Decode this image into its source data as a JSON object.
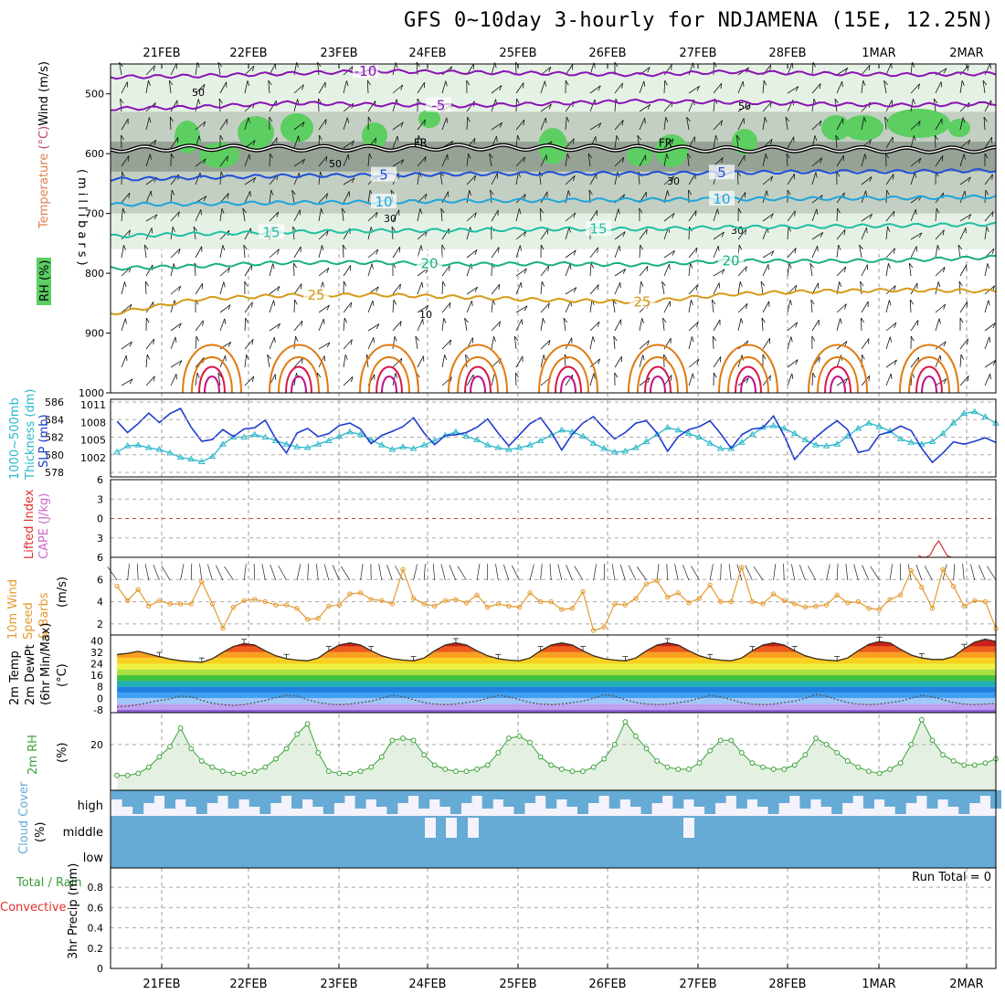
{
  "title": "GFS 0~10day 3-hourly for NDJAMENA (15E, 12.25N)",
  "dates": [
    "21FEB",
    "22FEB",
    "23FEB",
    "24FEB",
    "25FEB",
    "26FEB",
    "27FEB",
    "28FEB",
    "1MAR",
    "2MAR"
  ],
  "colors": {
    "rh_dark": "#8f9a8e",
    "rh_mid": "#c3cfc2",
    "rh_light": "#e6f1e5",
    "rh_green": "#5cce62",
    "t_purple": "#8a14b4",
    "t_blue": "#1f4fd8",
    "t_cyan": "#1fa4dc",
    "t_teal": "#1fbfa4",
    "t_green": "#18b080",
    "t_orange": "#d49a18",
    "t_dark_orange": "#e07a10",
    "t_red": "#d81848",
    "slp": "#1d3ccf",
    "thickness": "#2ab7c9",
    "wind10": "#e49a30",
    "rh2m": "#3ba23b",
    "cloud": "#66aad6"
  },
  "chart_data": [
    {
      "panel": "upper_air",
      "type": "heatmap",
      "ylabel_parts": [
        "RH (%)",
        "Temperature (°C)",
        "Wind (m/s)"
      ],
      "ylabel_unit": "(millibars)",
      "y_ticks": [
        500,
        600,
        700,
        800,
        900,
        1000
      ],
      "ylim": [
        450,
        1000
      ],
      "freezing_label": "FR",
      "rh_contour_labels": [
        "50",
        "50",
        "50",
        "30",
        "30",
        "30",
        "10"
      ],
      "isotherms": [
        {
          "label": "-10",
          "p": [
            472,
            470,
            466,
            462,
            464,
            466,
            468,
            463,
            466,
            468,
            466
          ]
        },
        {
          "label": "-5",
          "p": [
            525,
            522,
            515,
            518,
            520,
            516,
            512,
            514,
            517,
            519,
            516
          ]
        },
        {
          "label": "5",
          "p": [
            643,
            640,
            637,
            636,
            634,
            633,
            633,
            632,
            630,
            630,
            628
          ]
        },
        {
          "label": "10",
          "p": [
            685,
            684,
            682,
            681,
            679,
            678,
            677,
            676,
            675,
            674,
            672
          ]
        },
        {
          "label": "15",
          "p": [
            738,
            734,
            731,
            729,
            728,
            726,
            726,
            723,
            722,
            720,
            718
          ]
        },
        {
          "label": "20",
          "p": [
            792,
            788,
            782,
            782,
            785,
            784,
            786,
            779,
            780,
            778,
            773
          ]
        },
        {
          "label": "25",
          "p": [
            868,
            843,
            837,
            836,
            840,
            845,
            848,
            835,
            830,
            828,
            830
          ]
        }
      ],
      "freezing_level_p": [
        593,
        590,
        591,
        591,
        589,
        590,
        591,
        593,
        592,
        594,
        593
      ]
    },
    {
      "panel": "slp_thickness",
      "type": "line",
      "ylabel_left": "1000~500mb Thickness (dm)",
      "ylabel_right": "SLP (mb)",
      "y_ticks_left": [
        578,
        580,
        582,
        584,
        586
      ],
      "y_ticks_right": [
        1002,
        1005,
        1008,
        1011
      ],
      "series": [
        {
          "name": "SLP (mb)",
          "values": [
            1008.2,
            1006.3,
            1007.8,
            1009.6,
            1008.0,
            1009.5,
            1010.4,
            1007.2,
            1004.8,
            1005.1,
            1006.8,
            1005.6,
            1006.9,
            1007.1,
            1008.4,
            1005.2,
            1002.8,
            1006.2,
            1007.0,
            1005.6,
            1006.1,
            1007.5,
            1007.9,
            1006.9,
            1004.4,
            1005.8,
            1006.5,
            1007.3,
            1008.8,
            1006.2,
            1004.2,
            1005.8,
            1005.9,
            1006.3,
            1007.2,
            1008.6,
            1006.2,
            1004.0,
            1005.9,
            1007.8,
            1008.8,
            1006.4,
            1003.3,
            1006.0,
            1007.9,
            1009.0,
            1007.0,
            1005.2,
            1006.3,
            1007.9,
            1008.3,
            1006.2,
            1003.1,
            1005.6,
            1006.8,
            1007.3,
            1008.3,
            1006.1,
            1003.6,
            1005.9,
            1006.9,
            1007.1,
            1009.1,
            1005.8,
            1001.7,
            1003.8,
            1005.5,
            1007.0,
            1008.3,
            1006.8,
            1002.9,
            1003.3,
            1005.9,
            1006.4,
            1007.4,
            1006.6,
            1003.6,
            1001.2,
            1002.8,
            1004.7,
            1004.3,
            1004.8,
            1005.4,
            1004.6
          ]
        },
        {
          "name": "1000~500mb Thickness (dm)",
          "values": [
            580.3,
            581.0,
            581.1,
            580.8,
            580.6,
            580.2,
            579.7,
            579.5,
            579.2,
            579.8,
            581.2,
            582.0,
            582.0,
            582.3,
            582.0,
            581.6,
            581.2,
            580.9,
            580.8,
            581.2,
            581.6,
            582.1,
            582.6,
            582.3,
            581.7,
            581.1,
            580.6,
            580.9,
            580.7,
            581.1,
            581.6,
            582.2,
            582.6,
            582.1,
            581.7,
            581.1,
            580.8,
            580.6,
            580.8,
            581.1,
            581.6,
            582.2,
            582.8,
            582.6,
            582.1,
            581.3,
            580.7,
            580.3,
            580.4,
            580.8,
            581.5,
            582.3,
            583.1,
            582.8,
            582.4,
            582.0,
            581.3,
            580.7,
            580.7,
            581.4,
            582.3,
            583.1,
            583.3,
            583.0,
            582.4,
            581.7,
            581.1,
            581.0,
            581.2,
            582.1,
            583.0,
            583.6,
            583.2,
            582.7,
            581.8,
            581.4,
            581.2,
            581.5,
            582.4,
            583.6,
            584.7,
            584.9,
            584.3,
            583.6
          ]
        }
      ]
    },
    {
      "panel": "stability",
      "type": "line",
      "ylabel_left": "Lifted Index",
      "ylabel_right": "CAPE (J/kg)",
      "y_ticks": [
        -6,
        -3,
        0,
        3,
        6
      ],
      "tick_labels": [
        "6",
        "3",
        "0",
        "3",
        "6"
      ],
      "series": [
        {
          "name": "Lifted Index",
          "values": []
        },
        {
          "name": "CAPE (J/kg)",
          "values": [
            2,
            0,
            0,
            3,
            12,
            18,
            10,
            2,
            0
          ]
        }
      ]
    },
    {
      "panel": "wind10m",
      "type": "line",
      "ylabel_lines": [
        "10m Wind",
        "Speed",
        "& Barbs"
      ],
      "ylabel_unit": "(m/s)",
      "y_ticks": [
        2,
        4,
        6
      ],
      "ylim": [
        1,
        8
      ],
      "series": [
        {
          "name": "10m Wind Speed (m/s)",
          "values": [
            5.4,
            4.1,
            5.1,
            3.6,
            4.1,
            3.8,
            3.8,
            3.8,
            5.8,
            3.8,
            1.6,
            3.5,
            4.1,
            4.2,
            4.0,
            3.7,
            3.7,
            3.4,
            2.4,
            2.5,
            3.6,
            3.7,
            4.7,
            4.8,
            4.2,
            4.1,
            3.8,
            6.9,
            4.3,
            3.8,
            3.6,
            4.1,
            4.2,
            3.9,
            4.6,
            3.5,
            3.8,
            3.6,
            3.5,
            4.8,
            4.0,
            4.0,
            3.3,
            3.4,
            4.9,
            1.4,
            1.7,
            3.8,
            3.7,
            4.3,
            5.6,
            5.9,
            4.4,
            4.8,
            3.9,
            4.3,
            5.5,
            4.0,
            4.0,
            7.1,
            4.0,
            3.8,
            4.7,
            4.1,
            3.8,
            3.5,
            3.6,
            3.7,
            4.6,
            3.9,
            4.0,
            3.4,
            3.3,
            4.2,
            4.6,
            6.8,
            5.3,
            3.4,
            6.9,
            5.4,
            3.6,
            4.1,
            4.0,
            1.6
          ]
        }
      ]
    },
    {
      "panel": "temp2m",
      "type": "area",
      "ylabel_lines": [
        "2m Temp",
        "2m DewPt",
        "(6hr Min/Max)"
      ],
      "ylabel_unit": "(°C)",
      "y_ticks": [
        -8,
        0,
        8,
        16,
        24,
        32,
        40
      ],
      "ylim": [
        -10,
        44
      ],
      "series": [
        {
          "name": "2m Temp (°C)",
          "values": [
            30.5,
            31.2,
            32.6,
            30.8,
            28.9,
            27.2,
            26.1,
            25.5,
            25.0,
            27.5,
            32.0,
            36.0,
            38.0,
            37.0,
            33.0,
            29.5,
            27.5,
            26.5,
            26.0,
            28.0,
            33.0,
            37.0,
            38.5,
            37.0,
            33.0,
            29.5,
            27.5,
            26.5,
            26.0,
            28.0,
            33.0,
            37.0,
            38.5,
            37.0,
            33.0,
            29.5,
            27.5,
            26.5,
            26.0,
            28.0,
            33.0,
            37.0,
            38.5,
            37.0,
            33.0,
            29.5,
            27.5,
            26.5,
            26.0,
            28.0,
            33.0,
            37.0,
            38.5,
            37.0,
            33.0,
            29.5,
            27.5,
            26.5,
            26.0,
            28.0,
            33.0,
            37.0,
            38.5,
            37.0,
            33.0,
            29.5,
            27.5,
            26.5,
            26.0,
            28.0,
            33.0,
            37.5,
            39.5,
            38.5,
            34.0,
            30.0,
            28.0,
            27.0,
            27.0,
            29.0,
            34.5,
            39.0,
            41.0,
            39.5
          ]
        },
        {
          "name": "2m DewPt (°C)",
          "values": [
            -6.0,
            -5.5,
            -4.5,
            -3.0,
            -1.5,
            -0.5,
            1.5,
            1.0,
            -1.5,
            -3.5,
            -4.5,
            -5.0,
            -4.5,
            -3.0,
            -1.5,
            0.5,
            2.0,
            1.5,
            -1.0,
            -3.0,
            -4.0,
            -4.5,
            -4.0,
            -3.0,
            -2.0,
            0.0,
            2.0,
            1.0,
            -1.0,
            -3.0,
            -4.0,
            -4.5,
            -4.0,
            -3.0,
            -2.0,
            0.0,
            2.0,
            1.0,
            -1.0,
            -3.0,
            -4.0,
            -4.5,
            -4.0,
            -3.0,
            -2.0,
            0.0,
            2.5,
            1.5,
            -1.0,
            -3.0,
            -4.0,
            -4.5,
            -4.0,
            -3.0,
            -2.0,
            0.0,
            2.0,
            1.0,
            -1.0,
            -3.0,
            -4.0,
            -4.5,
            -4.0,
            -3.0,
            -2.0,
            0.0,
            2.5,
            1.5,
            -1.0,
            -3.0,
            -4.0,
            -4.5,
            -4.0,
            -3.0,
            -2.0,
            0.0,
            2.0,
            1.0,
            -1.0,
            -3.0,
            -4.0,
            -4.5,
            -4.0,
            -3.5
          ]
        }
      ]
    },
    {
      "panel": "rh2m",
      "type": "area",
      "ylabel": "2m RH",
      "ylabel_unit": "(%)",
      "y_ticks": [
        20
      ],
      "ylim": [
        0,
        35
      ],
      "series": [
        {
          "name": "2m RH (%)",
          "values": [
            5,
            5,
            6,
            9,
            14,
            19,
            28,
            18,
            12,
            9,
            7,
            6,
            6,
            7,
            9,
            13,
            18,
            25,
            30,
            16,
            7,
            6,
            6,
            7,
            9,
            14,
            22,
            23,
            22,
            15,
            10,
            8,
            7,
            7,
            8,
            10,
            16,
            23,
            24,
            21,
            14,
            10,
            8,
            7,
            7,
            9,
            13,
            20,
            31,
            24,
            18,
            12,
            9,
            8,
            8,
            11,
            17,
            22,
            22,
            16,
            11,
            9,
            8,
            8,
            10,
            15,
            23,
            20,
            16,
            12,
            9,
            7,
            6,
            8,
            11,
            20,
            32,
            22,
            15,
            12,
            10,
            10,
            11,
            13
          ]
        }
      ]
    },
    {
      "panel": "cloud",
      "type": "area",
      "ylabel": "Cloud Cover",
      "ylabel_unit": "(%)",
      "levels": [
        "high",
        "middle",
        "low"
      ]
    },
    {
      "panel": "precip",
      "type": "bar",
      "ylabel_left": "Total / Rain",
      "ylabel_left2": "Convective",
      "ylabel_unit": "3hr Precip (mm)",
      "y_ticks": [
        0,
        0.2,
        0.4,
        0.6,
        0.8
      ],
      "tick_labels": [
        "0",
        "0.2",
        "0.4",
        "0.6",
        "0.8"
      ],
      "run_total": "Run Total = 0",
      "values": []
    }
  ]
}
